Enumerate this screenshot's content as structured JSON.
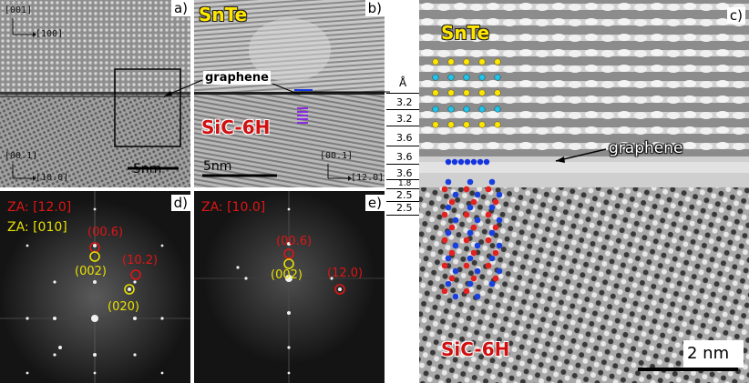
{
  "panel_a": {
    "label": "a)",
    "axis_top": {
      "up": "[001]",
      "right": "[100]"
    },
    "axis_bottom": {
      "up": "[00.1]",
      "right": "[10.0]"
    },
    "scale": "5nm"
  },
  "panel_b": {
    "label": "b)",
    "material_top": "SnTe",
    "material_bottom": "SiC-6H",
    "annotation": "graphene",
    "scale": "5nm",
    "axis": {
      "up": "[00.1]",
      "right": "[12.0]"
    }
  },
  "panel_c": {
    "label": "c)",
    "material_top": "SnTe",
    "material_bottom": "SiC-6H",
    "annotation": "graphene",
    "scale": "2 nm",
    "spacing_unit": "Å",
    "spacings": [
      "3.2",
      "3.2",
      "3.6",
      "3.6",
      "3.6",
      "1.8",
      "2.5",
      "2.5"
    ]
  },
  "panel_d": {
    "label": "d)",
    "za_red": "ZA: [12.0]",
    "za_yellow": "ZA: [010]",
    "spots": {
      "s1": "(00.6)",
      "s2": "(10.2)",
      "s3": "(002)",
      "s4": "(020)"
    }
  },
  "panel_e": {
    "label": "e)",
    "za_red": "ZA: [10.0]",
    "spots": {
      "s1": "(00.6)",
      "s2": "(002)",
      "s3": "(12.0)"
    }
  },
  "colors": {
    "snte_yellow": "#ffe600",
    "snte_cyan": "#22c4e8",
    "graphene_blue": "#1535e0",
    "sic_red": "#e42020",
    "sic_blue": "#1840e0",
    "fft_red": "#e01515",
    "fft_yellow": "#e8e000"
  }
}
